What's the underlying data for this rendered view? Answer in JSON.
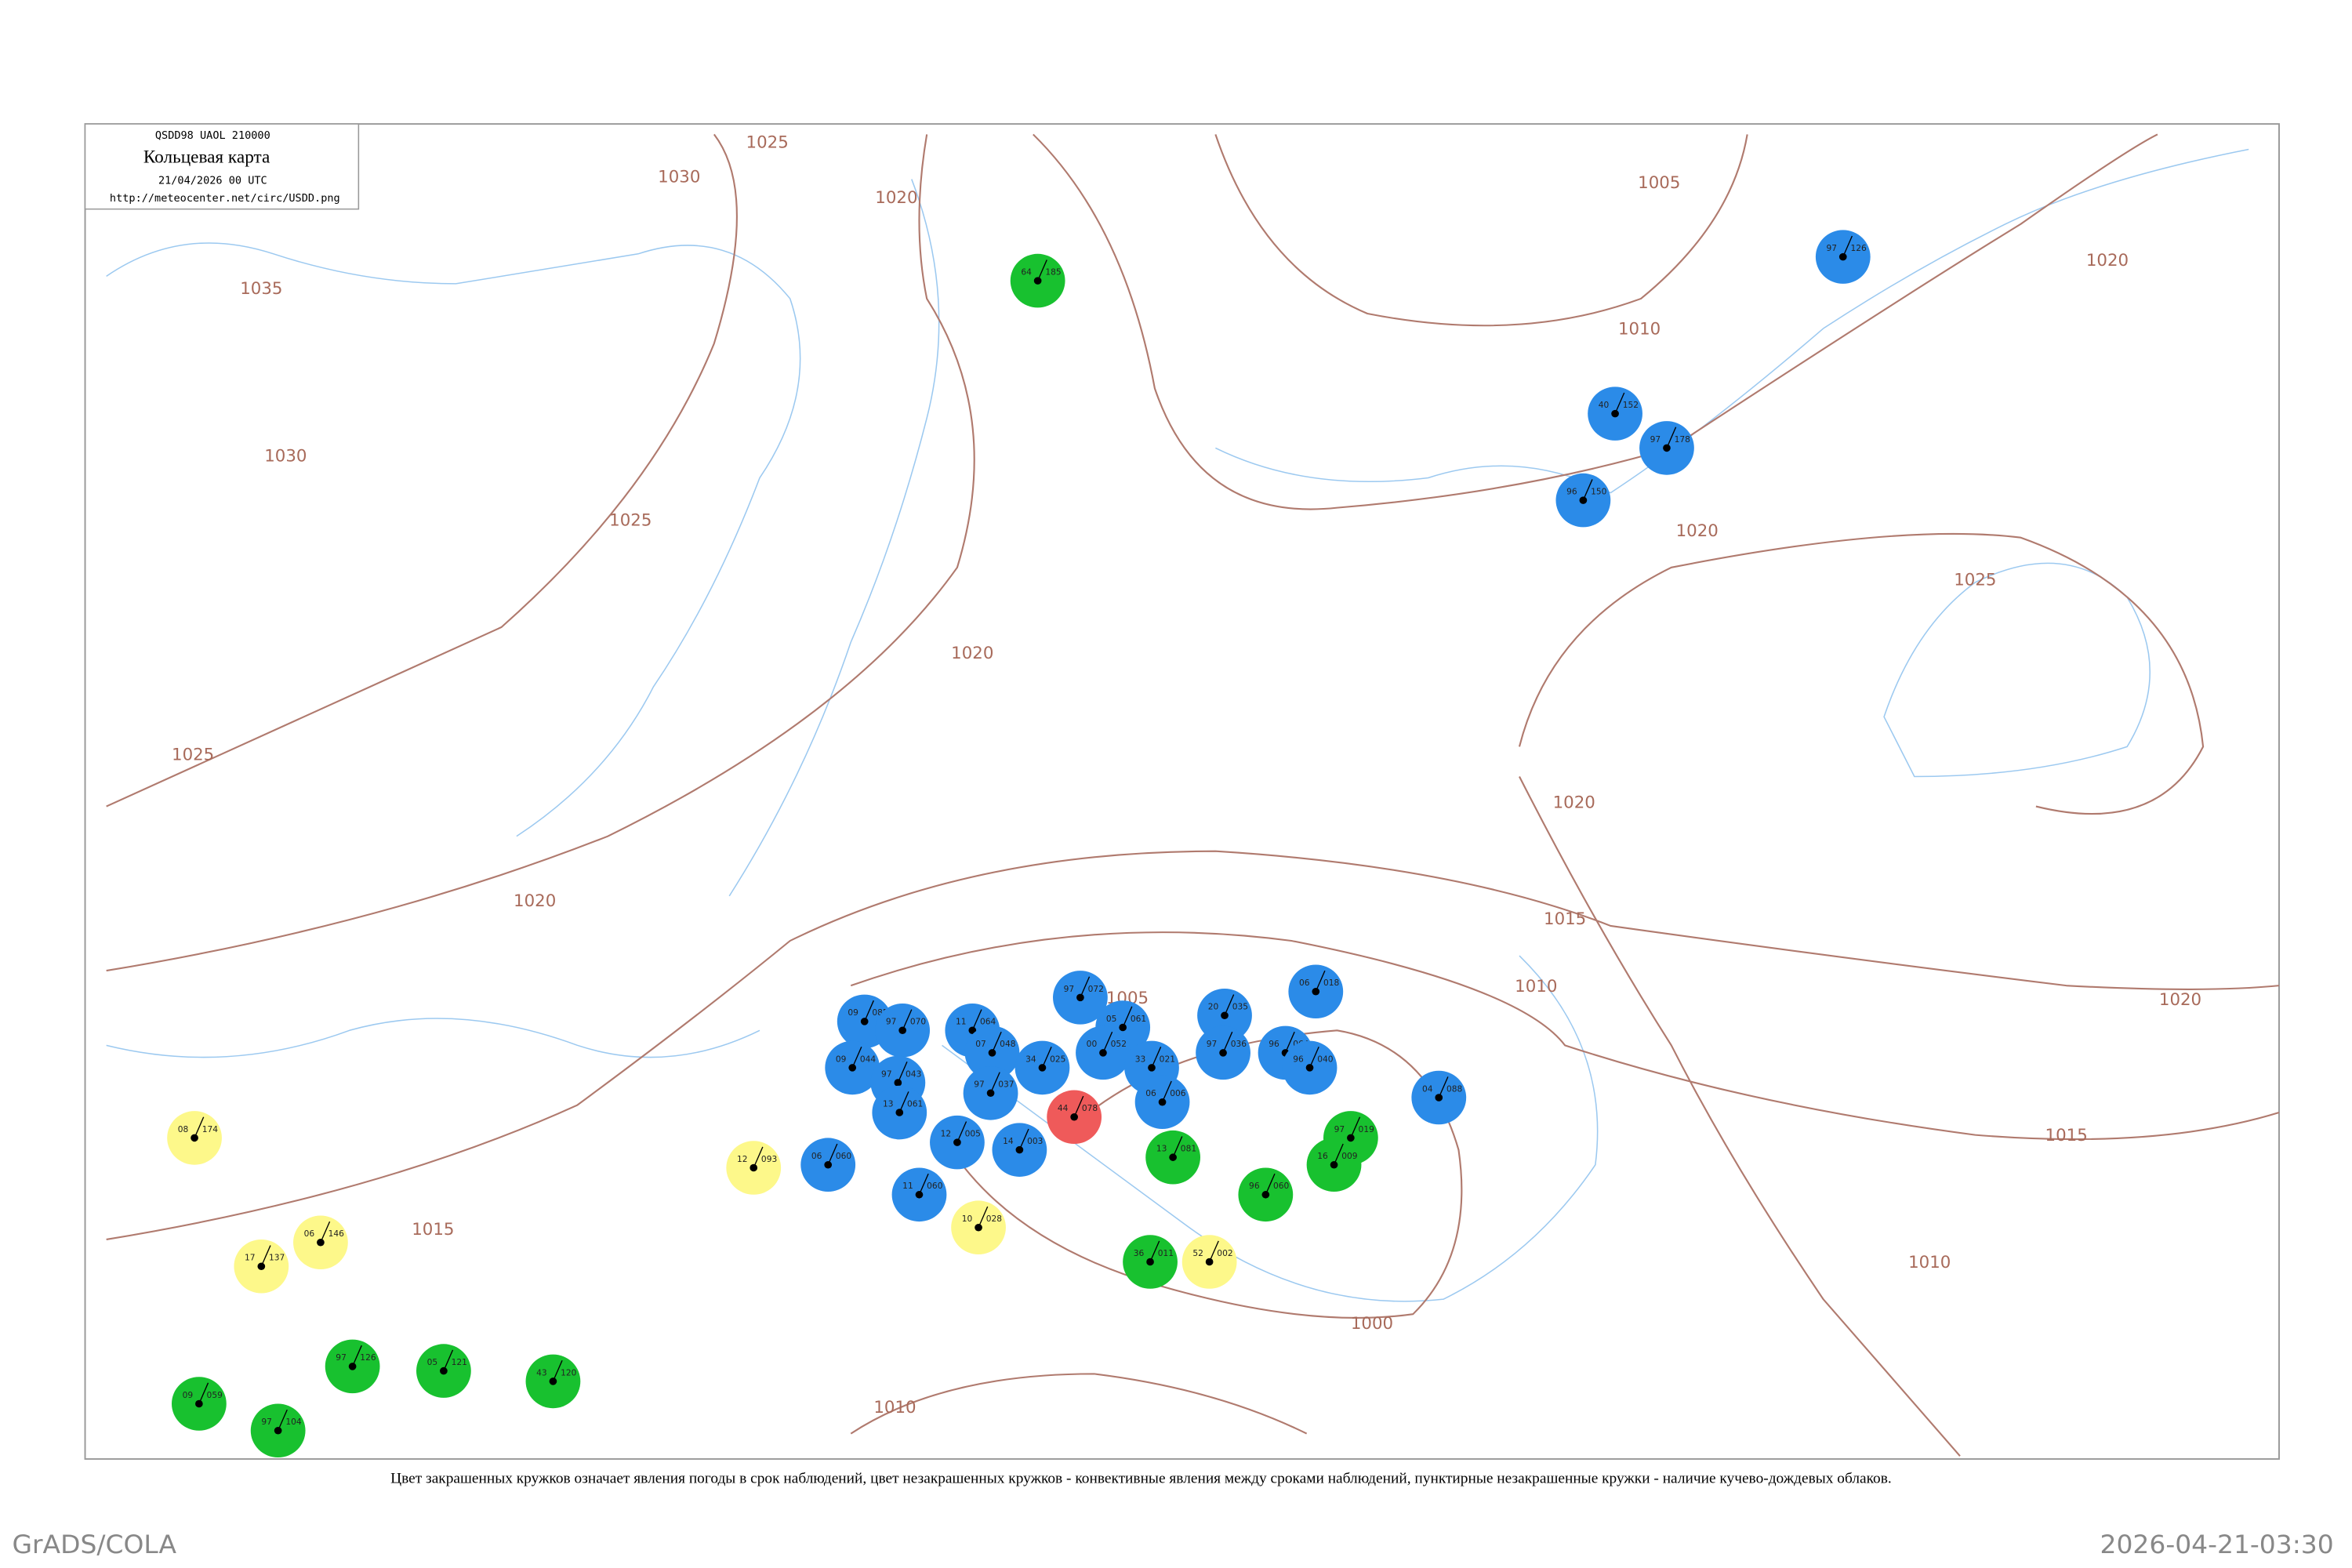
{
  "header": {
    "code": "QSDD98  UAOL  210000",
    "title": "Кольцевая карта",
    "time": "21/04/2026 00 UTC",
    "url": "http://meteocenter.net/circ/USDD.png"
  },
  "isobar_labels": [
    "1030",
    "1035",
    "1030",
    "1025",
    "1025",
    "1020",
    "1020",
    "1025",
    "1020",
    "1005",
    "1010",
    "1020",
    "1020",
    "1025",
    "1020",
    "1015",
    "1010",
    "1005",
    "1020",
    "1015",
    "1010",
    "1000",
    "1015",
    "1010"
  ],
  "stations": [
    {
      "color": "#2b8be8",
      "texts": [
        "126",
        "97"
      ]
    },
    {
      "color": "#2b8be8",
      "texts": [
        "152",
        "40"
      ]
    },
    {
      "color": "#2b8be8",
      "texts": [
        "150",
        "96"
      ]
    },
    {
      "color": "#2b8be8",
      "texts": [
        "178",
        "97"
      ]
    },
    {
      "color": "#2b8be8",
      "texts": [
        "018",
        "06"
      ]
    },
    {
      "color": "#2b8be8",
      "texts": [
        "072",
        "97"
      ]
    },
    {
      "color": "#2b8be8",
      "texts": [
        "061",
        "05"
      ]
    },
    {
      "color": "#2b8be8",
      "texts": [
        "085",
        "09"
      ]
    },
    {
      "color": "#2b8be8",
      "texts": [
        "070",
        "97"
      ]
    },
    {
      "color": "#2b8be8",
      "texts": [
        "064",
        "11"
      ]
    },
    {
      "color": "#2b8be8",
      "texts": [
        "044",
        "09"
      ]
    },
    {
      "color": "#2b8be8",
      "texts": [
        "043",
        "97"
      ]
    },
    {
      "color": "#2b8be8",
      "texts": [
        "048",
        "07"
      ]
    },
    {
      "color": "#2b8be8",
      "texts": [
        "025",
        "34"
      ]
    },
    {
      "color": "#2b8be8",
      "texts": [
        "052",
        "00"
      ]
    },
    {
      "color": "#2b8be8",
      "texts": [
        "021",
        "33"
      ]
    },
    {
      "color": "#2b8be8",
      "texts": [
        "006",
        "06"
      ]
    },
    {
      "color": "#2b8be8",
      "texts": [
        "035",
        "20"
      ]
    },
    {
      "color": "#2b8be8",
      "texts": [
        "036",
        "97"
      ]
    },
    {
      "color": "#2b8be8",
      "texts": [
        "064",
        "96"
      ]
    },
    {
      "color": "#2b8be8",
      "texts": [
        "040",
        "96"
      ]
    },
    {
      "color": "#2b8be8",
      "texts": [
        "088",
        "04"
      ]
    },
    {
      "color": "#2b8be8",
      "texts": [
        "037",
        "97"
      ]
    },
    {
      "color": "#2b8be8",
      "texts": [
        "061",
        "13"
      ]
    },
    {
      "color": "#2b8be8",
      "texts": [
        "005",
        "12"
      ]
    },
    {
      "color": "#2b8be8",
      "texts": [
        "003",
        "14"
      ]
    },
    {
      "color": "#2b8be8",
      "texts": [
        "060",
        "06"
      ]
    },
    {
      "color": "#2b8be8",
      "texts": [
        "060",
        "11"
      ]
    },
    {
      "color": "#18c12f",
      "texts": [
        "185",
        "64"
      ]
    },
    {
      "color": "#18c12f",
      "texts": [
        "081",
        "13"
      ]
    },
    {
      "color": "#18c12f",
      "texts": [
        "019",
        "97"
      ]
    },
    {
      "color": "#18c12f",
      "texts": [
        "009",
        "16"
      ]
    },
    {
      "color": "#18c12f",
      "texts": [
        "060",
        "96"
      ]
    },
    {
      "color": "#18c12f",
      "texts": [
        "011",
        "36"
      ]
    },
    {
      "color": "#18c12f",
      "texts": [
        "126",
        "97"
      ]
    },
    {
      "color": "#18c12f",
      "texts": [
        "121",
        "05"
      ]
    },
    {
      "color": "#18c12f",
      "texts": [
        "120",
        "43"
      ]
    },
    {
      "color": "#18c12f",
      "texts": [
        "059",
        "09"
      ]
    },
    {
      "color": "#18c12f",
      "texts": [
        "104",
        "97"
      ]
    },
    {
      "color": "#fdf88a",
      "texts": [
        "174",
        "08"
      ]
    },
    {
      "color": "#fdf88a",
      "texts": [
        "093",
        "12"
      ]
    },
    {
      "color": "#fdf88a",
      "texts": [
        "028",
        "10"
      ]
    },
    {
      "color": "#fdf88a",
      "texts": [
        "146",
        "06"
      ]
    },
    {
      "color": "#fdf88a",
      "texts": [
        "137",
        "17"
      ]
    },
    {
      "color": "#fdf88a",
      "texts": [
        "002",
        "52"
      ]
    },
    {
      "color": "#ef5a5a",
      "texts": [
        "078",
        "44"
      ]
    }
  ],
  "footer": {
    "caption": "Цвет закрашенных кружков означает явления погоды в срок наблюдений, цвет незакрашенных кружков - конвективные явления между сроками наблюдений, пунктирные незакрашенные кружки - наличие кучево-дождевых облаков.",
    "left": "GrADS/COLA",
    "right": "2026-04-21-03:30"
  }
}
